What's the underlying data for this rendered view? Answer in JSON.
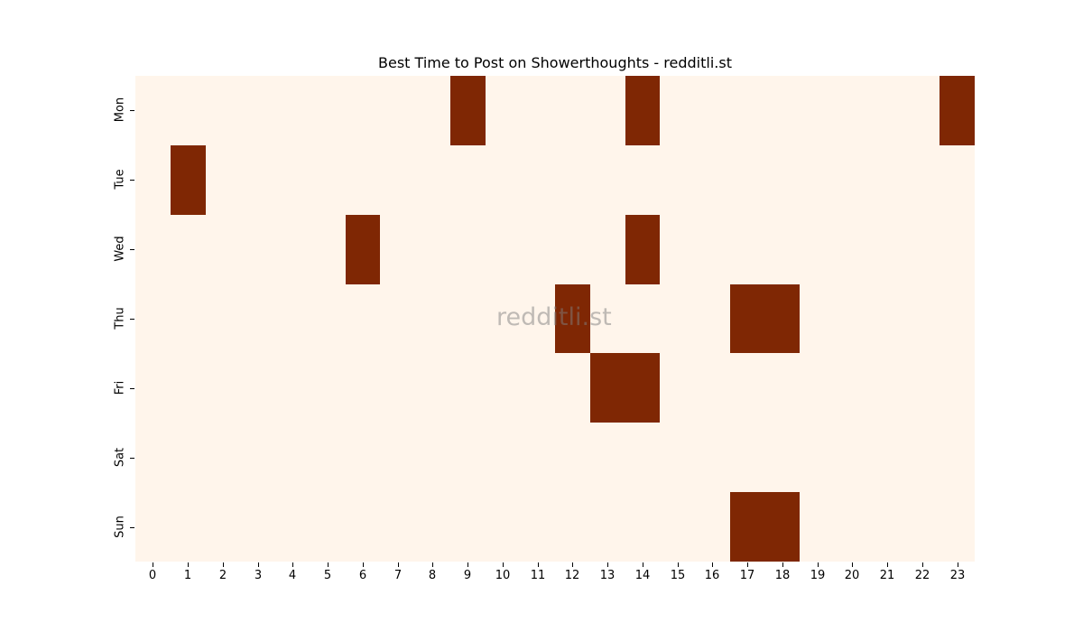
{
  "chart_data": {
    "type": "heatmap",
    "title": "Best Time to Post on Showerthoughts - redditli.st",
    "xlabel": "",
    "ylabel": "",
    "x_categories": [
      "0",
      "1",
      "2",
      "3",
      "4",
      "5",
      "6",
      "7",
      "8",
      "9",
      "10",
      "11",
      "12",
      "13",
      "14",
      "15",
      "16",
      "17",
      "18",
      "19",
      "20",
      "21",
      "22",
      "23"
    ],
    "y_categories": [
      "Mon",
      "Tue",
      "Wed",
      "Thu",
      "Fri",
      "Sat",
      "Sun"
    ],
    "colormap": "Oranges",
    "colors": {
      "low": "#fff5eb",
      "high": "#7f2704"
    },
    "colorbar": false,
    "watermark": "redditli.st",
    "highlighted_cells": [
      {
        "day": "Mon",
        "hour": 9
      },
      {
        "day": "Mon",
        "hour": 14
      },
      {
        "day": "Mon",
        "hour": 23
      },
      {
        "day": "Tue",
        "hour": 1
      },
      {
        "day": "Wed",
        "hour": 6
      },
      {
        "day": "Wed",
        "hour": 14
      },
      {
        "day": "Thu",
        "hour": 12
      },
      {
        "day": "Thu",
        "hour": 17
      },
      {
        "day": "Thu",
        "hour": 18
      },
      {
        "day": "Fri",
        "hour": 13
      },
      {
        "day": "Fri",
        "hour": 14
      },
      {
        "day": "Sun",
        "hour": 17
      },
      {
        "day": "Sun",
        "hour": 18
      }
    ],
    "values": [
      [
        0,
        0,
        0,
        0,
        0,
        0,
        0,
        0,
        0,
        1,
        0,
        0,
        0,
        0,
        1,
        0,
        0,
        0,
        0,
        0,
        0,
        0,
        0,
        1
      ],
      [
        0,
        1,
        0,
        0,
        0,
        0,
        0,
        0,
        0,
        0,
        0,
        0,
        0,
        0,
        0,
        0,
        0,
        0,
        0,
        0,
        0,
        0,
        0,
        0
      ],
      [
        0,
        0,
        0,
        0,
        0,
        0,
        1,
        0,
        0,
        0,
        0,
        0,
        0,
        0,
        1,
        0,
        0,
        0,
        0,
        0,
        0,
        0,
        0,
        0
      ],
      [
        0,
        0,
        0,
        0,
        0,
        0,
        0,
        0,
        0,
        0,
        0,
        0,
        1,
        0,
        0,
        0,
        0,
        1,
        1,
        0,
        0,
        0,
        0,
        0
      ],
      [
        0,
        0,
        0,
        0,
        0,
        0,
        0,
        0,
        0,
        0,
        0,
        0,
        0,
        1,
        1,
        0,
        0,
        0,
        0,
        0,
        0,
        0,
        0,
        0
      ],
      [
        0,
        0,
        0,
        0,
        0,
        0,
        0,
        0,
        0,
        0,
        0,
        0,
        0,
        0,
        0,
        0,
        0,
        0,
        0,
        0,
        0,
        0,
        0,
        0
      ],
      [
        0,
        0,
        0,
        0,
        0,
        0,
        0,
        0,
        0,
        0,
        0,
        0,
        0,
        0,
        0,
        0,
        0,
        1,
        1,
        0,
        0,
        0,
        0,
        0
      ]
    ]
  }
}
